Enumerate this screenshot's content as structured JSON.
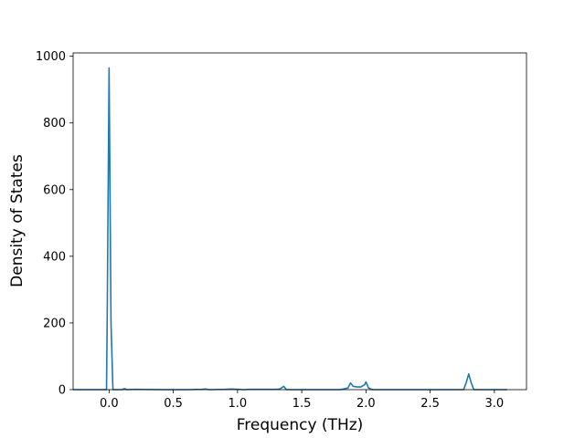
{
  "chart_data": {
    "type": "line",
    "xlabel": "Frequency (THz)",
    "ylabel": "Density of States",
    "xlim": [
      -0.28,
      3.25
    ],
    "ylim": [
      0,
      1010
    ],
    "x_ticks": [
      0.0,
      0.5,
      1.0,
      1.5,
      2.0,
      2.5,
      3.0
    ],
    "x_tick_labels": [
      "0.0",
      "0.5",
      "1.0",
      "1.5",
      "2.0",
      "2.5",
      "3.0"
    ],
    "y_ticks": [
      0,
      200,
      400,
      600,
      800,
      1000
    ],
    "y_tick_labels": [
      "0",
      "200",
      "400",
      "600",
      "800",
      "1000"
    ],
    "grid": false,
    "series": [
      {
        "color": "#1f77b4",
        "x": [
          -0.28,
          -0.02,
          -0.015,
          0.0,
          0.015,
          0.03,
          0.06,
          0.1,
          0.12,
          0.14,
          0.2,
          0.4,
          0.6,
          0.72,
          0.75,
          0.78,
          0.9,
          0.95,
          1.0,
          1.05,
          1.1,
          1.2,
          1.3,
          1.33,
          1.36,
          1.38,
          1.45,
          1.8,
          1.86,
          1.88,
          1.9,
          1.93,
          1.96,
          1.99,
          2.0,
          2.02,
          2.05,
          2.5,
          2.7,
          2.76,
          2.78,
          2.8,
          2.82,
          2.84,
          3.0,
          3.1
        ],
        "y": [
          0,
          0,
          200,
          965,
          200,
          0,
          0,
          0,
          3,
          0,
          1,
          0,
          0,
          1,
          2,
          0,
          1,
          2,
          1,
          0,
          1,
          1,
          1,
          2,
          10,
          0,
          0,
          0,
          5,
          20,
          10,
          8,
          8,
          15,
          23,
          5,
          0,
          0,
          0,
          0,
          20,
          47,
          20,
          0,
          0,
          0
        ]
      }
    ]
  }
}
